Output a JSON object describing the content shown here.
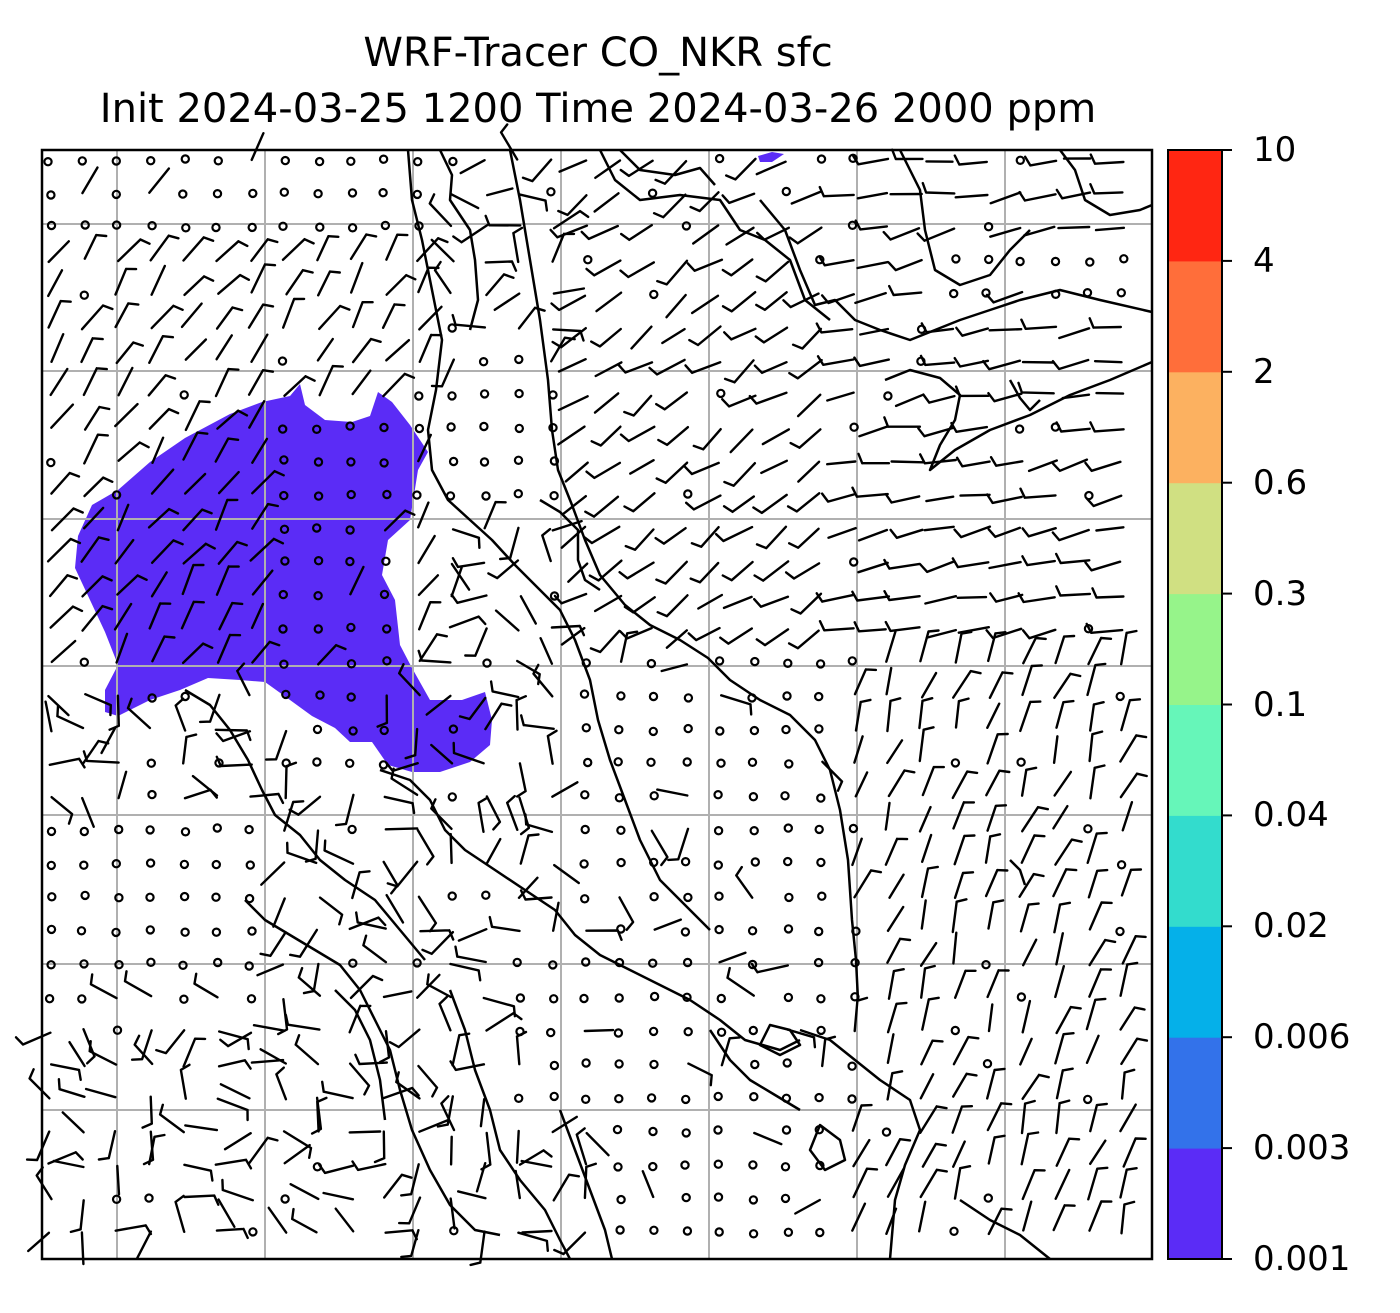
{
  "title": {
    "line1": "WRF-Tracer CO_NKR sfc",
    "line2": "Init 2024-03-25 1200 Time 2024-03-26 2000 ppm"
  },
  "colorbar": {
    "levels": [
      "0.001",
      "0.003",
      "0.006",
      "0.02",
      "0.04",
      "0.1",
      "0.3",
      "0.6",
      "2",
      "4",
      "10"
    ],
    "colors": [
      "#5b2cf6",
      "#3372ea",
      "#05b0e9",
      "#33dccd",
      "#66f6b9",
      "#96f48a",
      "#d0e082",
      "#fcb160",
      "#ff6e3a",
      "#ff2612"
    ]
  },
  "map": {
    "plume_color": "#5b2cf6",
    "gridline_color": "#b0b0b0",
    "features": [
      "coastlines",
      "wind-barbs",
      "calm-circles",
      "gridlines"
    ]
  }
}
